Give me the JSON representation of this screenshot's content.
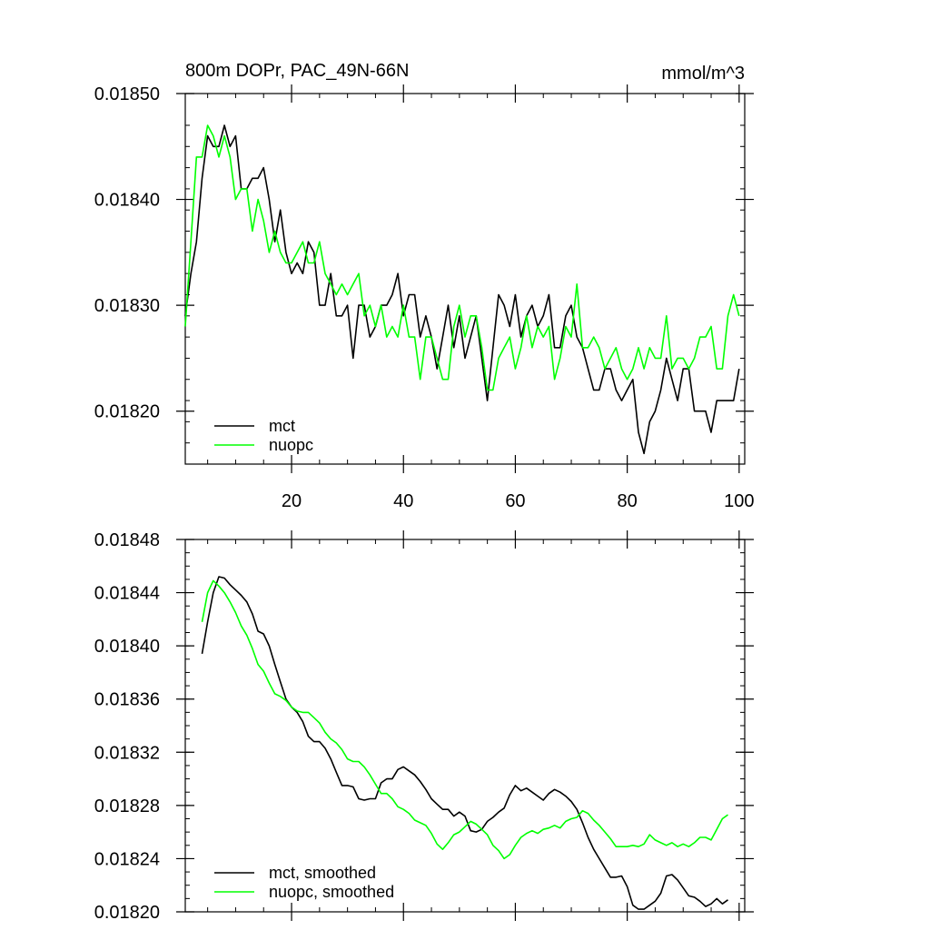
{
  "chart_data": [
    {
      "type": "line",
      "title": "800m DOPr, PAC_49N-66N",
      "units": "mmol/m^3",
      "xlabel": "",
      "ylabel": "",
      "xlim": [
        1,
        101
      ],
      "ylim": [
        0.01815,
        0.0185
      ],
      "x_ticks": [
        20,
        40,
        60,
        80,
        100
      ],
      "x_tick_labels": [
        "20",
        "40",
        "60",
        "80",
        "100"
      ],
      "y_ticks": [
        0.0182,
        0.0183,
        0.0184,
        0.0185
      ],
      "y_tick_labels": [
        "0.01820",
        "0.01830",
        "0.01840",
        "0.01850"
      ],
      "legend_position": "bottom-left",
      "series": [
        {
          "name": "mct",
          "color": "#000000",
          "values": [
            0.01829,
            0.01833,
            0.01836,
            0.01842,
            0.01846,
            0.01845,
            0.01845,
            0.01847,
            0.01845,
            0.01846,
            0.01841,
            0.01841,
            0.01842,
            0.01842,
            0.01843,
            0.0184,
            0.01836,
            0.01839,
            0.01835,
            0.01833,
            0.01834,
            0.01833,
            0.01836,
            0.01835,
            0.0183,
            0.0183,
            0.01833,
            0.01829,
            0.01829,
            0.0183,
            0.01825,
            0.0183,
            0.0183,
            0.01827,
            0.01828,
            0.0183,
            0.0183,
            0.01831,
            0.01833,
            0.01829,
            0.01831,
            0.01831,
            0.01827,
            0.01829,
            0.01827,
            0.01824,
            0.01827,
            0.0183,
            0.01826,
            0.01829,
            0.01825,
            0.01827,
            0.01829,
            0.01825,
            0.01821,
            0.01826,
            0.01831,
            0.0183,
            0.01828,
            0.01831,
            0.01827,
            0.01829,
            0.0183,
            0.01828,
            0.01829,
            0.01831,
            0.01826,
            0.01826,
            0.01829,
            0.0183,
            0.01827,
            0.01826,
            0.01824,
            0.01822,
            0.01822,
            0.01824,
            0.01824,
            0.01822,
            0.01821,
            0.01822,
            0.01823,
            0.01818,
            0.01816,
            0.01819,
            0.0182,
            0.01822,
            0.01825,
            0.01823,
            0.01821,
            0.01824,
            0.01824,
            0.0182,
            0.0182,
            0.0182,
            0.01818,
            0.01821,
            0.01821,
            0.01821,
            0.01821,
            0.01824
          ]
        },
        {
          "name": "nuopc",
          "color": "#00ff00",
          "values": [
            0.01828,
            0.01836,
            0.01844,
            0.01844,
            0.01847,
            0.01846,
            0.01844,
            0.01846,
            0.01844,
            0.0184,
            0.01841,
            0.01841,
            0.01837,
            0.0184,
            0.01838,
            0.01835,
            0.01837,
            0.01835,
            0.01834,
            0.01834,
            0.01835,
            0.01836,
            0.01834,
            0.01834,
            0.01836,
            0.01833,
            0.01832,
            0.01831,
            0.01832,
            0.01831,
            0.01832,
            0.01833,
            0.01829,
            0.0183,
            0.01828,
            0.0183,
            0.01827,
            0.01828,
            0.01827,
            0.0183,
            0.01827,
            0.01827,
            0.01823,
            0.01827,
            0.01827,
            0.01825,
            0.01823,
            0.01823,
            0.01828,
            0.0183,
            0.01827,
            0.01829,
            0.01829,
            0.01826,
            0.01822,
            0.01822,
            0.01825,
            0.01826,
            0.01827,
            0.01824,
            0.01826,
            0.01829,
            0.01826,
            0.01828,
            0.01827,
            0.01828,
            0.01823,
            0.01825,
            0.01828,
            0.01827,
            0.01832,
            0.01826,
            0.01826,
            0.01827,
            0.01826,
            0.01824,
            0.01825,
            0.01826,
            0.01824,
            0.01823,
            0.01824,
            0.01826,
            0.01824,
            0.01826,
            0.01825,
            0.01825,
            0.01829,
            0.01824,
            0.01825,
            0.01825,
            0.01824,
            0.01825,
            0.01827,
            0.01827,
            0.01828,
            0.01824,
            0.01824,
            0.01829,
            0.01831,
            0.01829
          ]
        }
      ]
    },
    {
      "type": "line",
      "title": "",
      "xlabel": "",
      "ylabel": "",
      "xlim": [
        1,
        101
      ],
      "ylim": [
        0.0182,
        0.01848
      ],
      "x_ticks": [
        20,
        40,
        60,
        80,
        100
      ],
      "x_tick_labels": [],
      "y_ticks": [
        0.0182,
        0.01824,
        0.01828,
        0.01832,
        0.01836,
        0.0184,
        0.01844,
        0.01848
      ],
      "y_tick_labels": [
        "0.01820",
        "0.01824",
        "0.01828",
        "0.01832",
        "0.01836",
        "0.01840",
        "0.01844",
        "0.01848"
      ],
      "legend_position": "bottom-left",
      "series": [
        {
          "name": "mct, smoothed",
          "color": "#000000",
          "x": [
            4,
            5,
            6,
            7,
            8,
            9,
            10,
            11,
            12,
            13,
            14,
            15,
            16,
            17,
            18,
            19,
            20,
            21,
            22,
            23,
            24,
            25,
            26,
            27,
            28,
            29,
            30,
            31,
            32,
            33,
            34,
            35,
            36,
            37,
            38,
            39,
            40,
            41,
            42,
            43,
            44,
            45,
            46,
            47,
            48,
            49,
            50,
            51,
            52,
            53,
            54,
            55,
            56,
            57,
            58,
            59,
            60,
            61,
            62,
            63,
            64,
            65,
            66,
            67,
            68,
            69,
            70,
            71,
            72,
            73,
            74,
            75,
            76,
            77,
            78,
            79,
            80,
            81,
            82,
            83,
            84,
            85,
            86,
            87,
            88,
            89,
            90,
            91,
            92,
            93,
            94,
            95,
            96,
            97,
            98
          ],
          "values": [
            0.018394,
            0.018418,
            0.01844,
            0.018452,
            0.018451,
            0.018446,
            0.018442,
            0.018438,
            0.018433,
            0.018424,
            0.018411,
            0.018409,
            0.0184,
            0.018386,
            0.018373,
            0.01836,
            0.018354,
            0.01835,
            0.018343,
            0.018332,
            0.018328,
            0.018328,
            0.018323,
            0.018315,
            0.018305,
            0.018295,
            0.018295,
            0.018294,
            0.018285,
            0.018284,
            0.018285,
            0.018285,
            0.018297,
            0.0183,
            0.0183,
            0.018307,
            0.018309,
            0.018306,
            0.018303,
            0.018298,
            0.018292,
            0.018285,
            0.018281,
            0.018277,
            0.018277,
            0.018272,
            0.018275,
            0.018272,
            0.018261,
            0.01826,
            0.018262,
            0.018268,
            0.018271,
            0.018275,
            0.018278,
            0.018288,
            0.018295,
            0.018291,
            0.018293,
            0.01829,
            0.018287,
            0.018284,
            0.018289,
            0.018292,
            0.01829,
            0.018287,
            0.018283,
            0.018277,
            0.018267,
            0.018256,
            0.018247,
            0.01824,
            0.018233,
            0.018226,
            0.018226,
            0.018227,
            0.018219,
            0.018205,
            0.018202,
            0.018202,
            0.018205,
            0.018208,
            0.018214,
            0.018227,
            0.018228,
            0.018224,
            0.018218,
            0.018212,
            0.018211,
            0.018208,
            0.018204,
            0.018206,
            0.01821,
            0.018206,
            0.018209
          ]
        },
        {
          "name": "nuopc, smoothed",
          "color": "#00ff00",
          "x": [
            4,
            5,
            6,
            7,
            8,
            9,
            10,
            11,
            12,
            13,
            14,
            15,
            16,
            17,
            18,
            19,
            20,
            21,
            22,
            23,
            24,
            25,
            26,
            27,
            28,
            29,
            30,
            31,
            32,
            33,
            34,
            35,
            36,
            37,
            38,
            39,
            40,
            41,
            42,
            43,
            44,
            45,
            46,
            47,
            48,
            49,
            50,
            51,
            52,
            53,
            54,
            55,
            56,
            57,
            58,
            59,
            60,
            61,
            62,
            63,
            64,
            65,
            66,
            67,
            68,
            69,
            70,
            71,
            72,
            73,
            74,
            75,
            76,
            77,
            78,
            79,
            80,
            81,
            82,
            83,
            84,
            85,
            86,
            87,
            88,
            89,
            90,
            91,
            92,
            93,
            94,
            95,
            96,
            97,
            98
          ],
          "values": [
            0.018418,
            0.01844,
            0.018449,
            0.018445,
            0.01844,
            0.018433,
            0.018425,
            0.018415,
            0.018408,
            0.018398,
            0.018386,
            0.018381,
            0.018372,
            0.018364,
            0.018362,
            0.018359,
            0.018354,
            0.018351,
            0.01835,
            0.01835,
            0.018346,
            0.018342,
            0.018335,
            0.01833,
            0.018327,
            0.018322,
            0.018315,
            0.018313,
            0.018313,
            0.018309,
            0.018303,
            0.018296,
            0.018289,
            0.018289,
            0.018285,
            0.018279,
            0.018277,
            0.018274,
            0.018269,
            0.018267,
            0.018265,
            0.018259,
            0.018251,
            0.018247,
            0.018252,
            0.018258,
            0.01826,
            0.018264,
            0.018268,
            0.018266,
            0.018262,
            0.018258,
            0.01825,
            0.018246,
            0.01824,
            0.018243,
            0.01825,
            0.018256,
            0.018259,
            0.018261,
            0.018259,
            0.018262,
            0.018263,
            0.018265,
            0.018263,
            0.018268,
            0.01827,
            0.018271,
            0.018276,
            0.018274,
            0.018269,
            0.018265,
            0.01826,
            0.018255,
            0.018249,
            0.018249,
            0.018249,
            0.01825,
            0.018249,
            0.018251,
            0.018258,
            0.018254,
            0.018252,
            0.01825,
            0.018252,
            0.018249,
            0.018251,
            0.018249,
            0.018252,
            0.018256,
            0.018256,
            0.018254,
            0.018262,
            0.01827,
            0.018273
          ]
        }
      ]
    }
  ]
}
